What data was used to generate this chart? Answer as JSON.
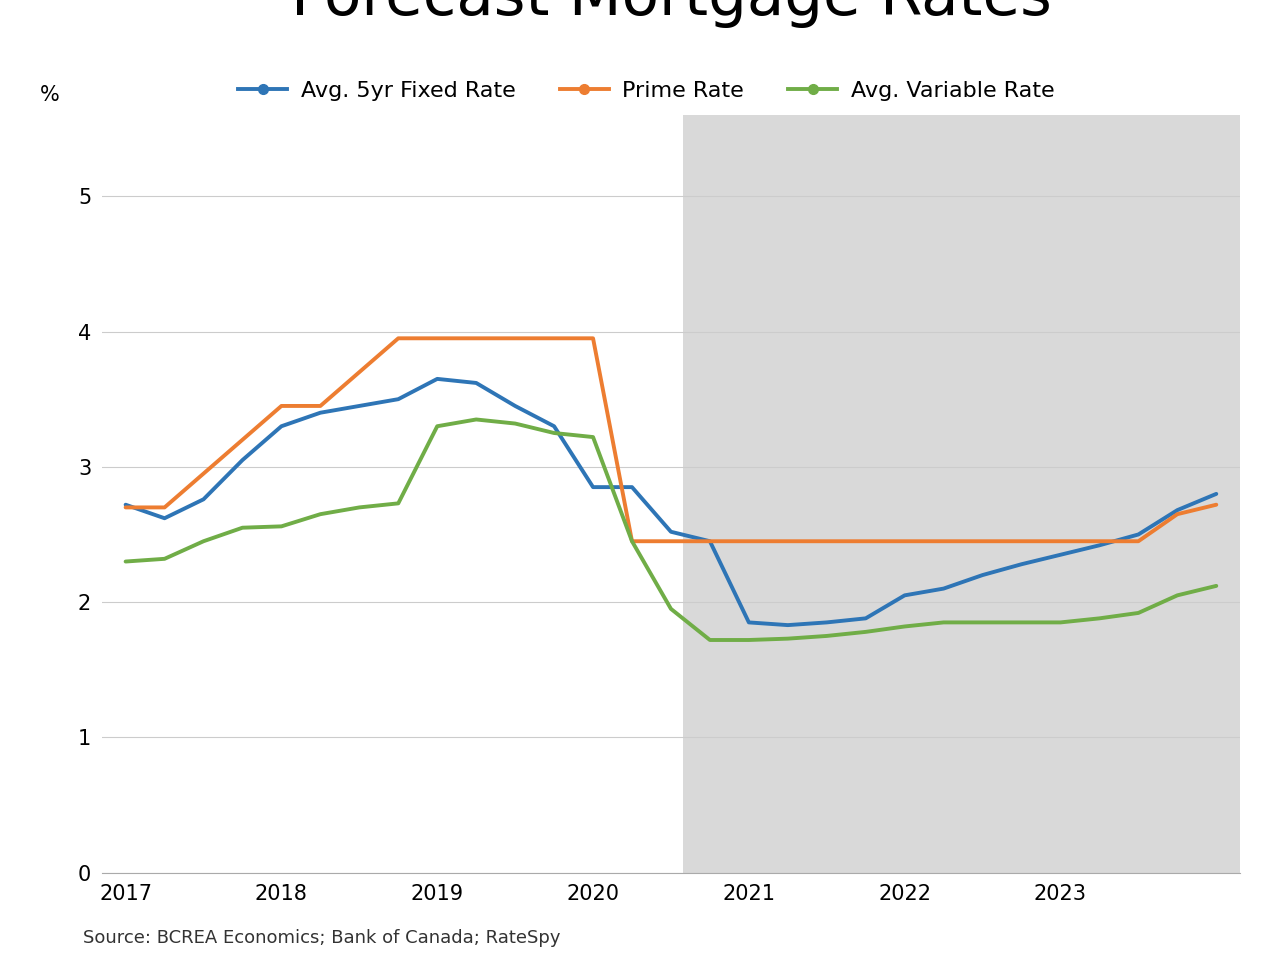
{
  "title_fontsize": 44,
  "source_text": "Source: BCREA Economics; Bank of Canada; RateSpy",
  "background_color": "#ffffff",
  "forecast_shade_color": "#d9d9d9",
  "forecast_start": 2020.58,
  "ylabel": "%",
  "ylim": [
    0,
    5.6
  ],
  "yticks": [
    0,
    1,
    2,
    3,
    4,
    5
  ],
  "xlim": [
    2016.85,
    2024.15
  ],
  "xticks": [
    2017,
    2018,
    2019,
    2020,
    2021,
    2022,
    2023
  ],
  "fixed_rate": {
    "label": "Avg. 5yr Fixed Rate",
    "color": "#2E75B6",
    "linewidth": 2.8,
    "x": [
      2017.0,
      2017.25,
      2017.5,
      2017.75,
      2018.0,
      2018.25,
      2018.5,
      2018.75,
      2019.0,
      2019.25,
      2019.5,
      2019.75,
      2020.0,
      2020.25,
      2020.5,
      2020.75,
      2021.0,
      2021.25,
      2021.5,
      2021.75,
      2022.0,
      2022.25,
      2022.5,
      2022.75,
      2023.0,
      2023.25,
      2023.5,
      2023.75,
      2024.0
    ],
    "y": [
      2.72,
      2.62,
      2.76,
      3.05,
      3.3,
      3.4,
      3.45,
      3.5,
      3.65,
      3.62,
      3.45,
      3.3,
      2.85,
      2.85,
      2.52,
      2.45,
      1.85,
      1.83,
      1.85,
      1.88,
      2.05,
      2.1,
      2.2,
      2.28,
      2.35,
      2.42,
      2.5,
      2.68,
      2.8
    ]
  },
  "prime_rate": {
    "label": "Prime Rate",
    "color": "#ED7D31",
    "linewidth": 2.8,
    "x": [
      2017.0,
      2017.25,
      2017.5,
      2017.75,
      2018.0,
      2018.25,
      2018.5,
      2018.75,
      2019.0,
      2019.25,
      2019.5,
      2019.75,
      2020.0,
      2020.25,
      2020.5,
      2020.75,
      2021.0,
      2021.25,
      2021.5,
      2021.75,
      2022.0,
      2022.25,
      2022.5,
      2022.75,
      2023.0,
      2023.25,
      2023.5,
      2023.75,
      2024.0
    ],
    "y": [
      2.7,
      2.7,
      2.95,
      3.2,
      3.45,
      3.45,
      3.7,
      3.95,
      3.95,
      3.95,
      3.95,
      3.95,
      3.95,
      2.45,
      2.45,
      2.45,
      2.45,
      2.45,
      2.45,
      2.45,
      2.45,
      2.45,
      2.45,
      2.45,
      2.45,
      2.45,
      2.45,
      2.65,
      2.72
    ]
  },
  "variable_rate": {
    "label": "Avg. Variable Rate",
    "color": "#70AD47",
    "linewidth": 2.8,
    "x": [
      2017.0,
      2017.25,
      2017.5,
      2017.75,
      2018.0,
      2018.25,
      2018.5,
      2018.75,
      2019.0,
      2019.25,
      2019.5,
      2019.75,
      2020.0,
      2020.25,
      2020.5,
      2020.75,
      2021.0,
      2021.25,
      2021.5,
      2021.75,
      2022.0,
      2022.25,
      2022.5,
      2022.75,
      2023.0,
      2023.25,
      2023.5,
      2023.75,
      2024.0
    ],
    "y": [
      2.3,
      2.32,
      2.45,
      2.55,
      2.56,
      2.65,
      2.7,
      2.73,
      3.3,
      3.35,
      3.32,
      3.25,
      3.22,
      2.45,
      1.95,
      1.72,
      1.72,
      1.73,
      1.75,
      1.78,
      1.82,
      1.85,
      1.85,
      1.85,
      1.85,
      1.88,
      1.92,
      2.05,
      2.12
    ]
  },
  "legend_fontsize": 16,
  "tick_fontsize": 15,
  "source_fontsize": 13
}
